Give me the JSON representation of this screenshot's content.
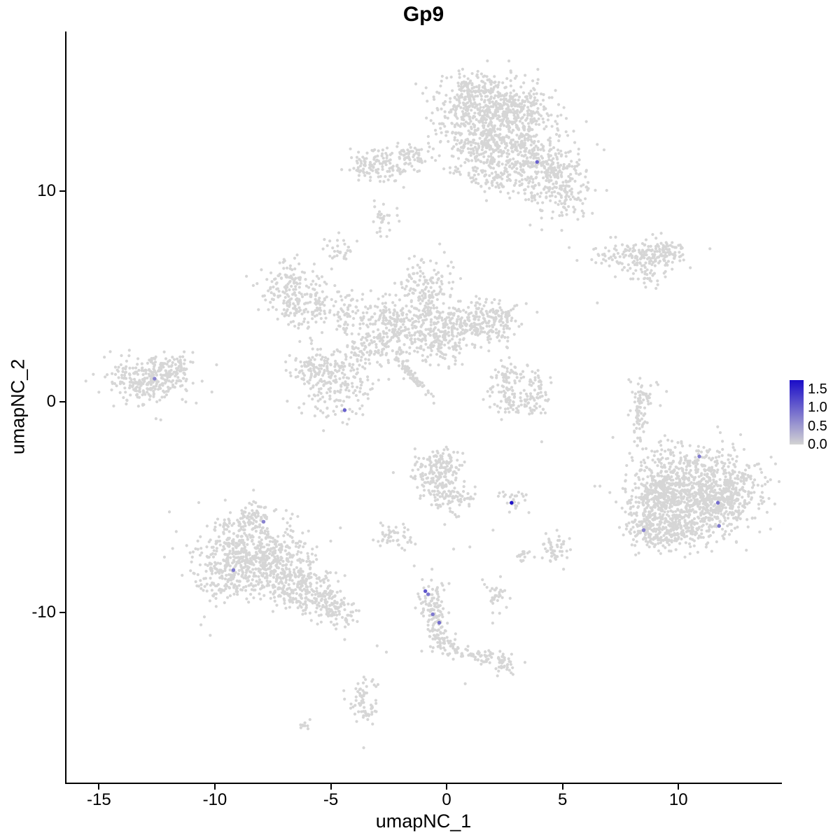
{
  "title": "Gp9",
  "axes": {
    "x_label": "umapNC_1",
    "y_label": "umapNC_2",
    "x_ticks": [
      -15,
      -10,
      -5,
      0,
      5,
      10
    ],
    "y_ticks": [
      -10,
      0,
      10
    ],
    "x_range": [
      -16.4,
      14.4
    ],
    "y_range": [
      -18.1,
      17.6
    ]
  },
  "legend": {
    "tick_labels": [
      "1.5",
      "1.0",
      "0.5",
      "0.0"
    ],
    "tick_values": [
      1.5,
      1.0,
      0.5,
      0.0
    ],
    "domain": [
      0,
      1.75
    ],
    "min_color": "#d3d3d3",
    "max_color": "#1a0cc8"
  },
  "chart_data": {
    "type": "scatter",
    "title": "Gp9",
    "xlabel": "umapNC_1",
    "ylabel": "umapNC_2",
    "grid": false,
    "point_color_zero": "#d6d6d6",
    "point_radius": 2.1,
    "highlight_radius": 2.7,
    "seed": 421,
    "clusters": [
      {
        "cx": 1.7,
        "cy": 13.9,
        "sx": 1.05,
        "sy": 0.85,
        "n": 430
      },
      {
        "cx": 2.7,
        "cy": 12.3,
        "sx": 1.15,
        "sy": 0.85,
        "n": 300
      },
      {
        "cx": 4.1,
        "cy": 11.3,
        "sx": 0.95,
        "sy": 0.75,
        "n": 230
      },
      {
        "cx": 4.9,
        "cy": 9.9,
        "sx": 0.7,
        "sy": 0.65,
        "n": 150
      },
      {
        "cx": 1.1,
        "cy": 12.0,
        "sx": 0.55,
        "sy": 0.7,
        "n": 110
      },
      {
        "cx": 2.1,
        "cy": 10.7,
        "sx": 0.4,
        "sy": 0.5,
        "n": 55
      },
      {
        "cx": 3.2,
        "cy": 14.0,
        "sx": 0.8,
        "sy": 0.55,
        "n": 130
      },
      {
        "cx": 0.9,
        "cy": 14.8,
        "sx": 0.4,
        "sy": 0.4,
        "n": 50
      },
      {
        "cx": -2.5,
        "cy": 11.3,
        "sx": 0.85,
        "sy": 0.45,
        "n": 120
      },
      {
        "cx": -1.3,
        "cy": 11.7,
        "sx": 0.45,
        "sy": 0.3,
        "n": 40
      },
      {
        "cx": -3.5,
        "cy": 11.0,
        "sx": 0.3,
        "sy": 0.25,
        "n": 25
      },
      {
        "cx": -2.9,
        "cy": 8.7,
        "sx": 0.3,
        "sy": 0.35,
        "n": 28
      },
      {
        "cx": -4.6,
        "cy": 7.3,
        "sx": 0.35,
        "sy": 0.3,
        "n": 30
      },
      {
        "cx": 8.0,
        "cy": 6.9,
        "sx": 1.0,
        "sy": 0.4,
        "n": 130
      },
      {
        "cx": 9.4,
        "cy": 7.1,
        "sx": 0.6,
        "sy": 0.4,
        "n": 85
      },
      {
        "cx": 8.6,
        "cy": 6.0,
        "sx": 0.35,
        "sy": 0.25,
        "n": 25
      },
      {
        "cx": -6.7,
        "cy": 5.3,
        "sx": 0.75,
        "sy": 0.75,
        "n": 180
      },
      {
        "cx": -5.9,
        "cy": 4.3,
        "sx": 0.45,
        "sy": 0.4,
        "n": 55
      },
      {
        "cx": -0.9,
        "cy": 5.3,
        "sx": 0.55,
        "sy": 0.75,
        "n": 150
      },
      {
        "cx": 0.7,
        "cy": 3.7,
        "sx": 1.1,
        "sy": 0.6,
        "n": 260
      },
      {
        "cx": 2.1,
        "cy": 3.9,
        "sx": 0.55,
        "sy": 0.45,
        "n": 90
      },
      {
        "cx": -1.6,
        "cy": 3.4,
        "sx": 0.8,
        "sy": 0.5,
        "n": 140
      },
      {
        "cx": -3.2,
        "cy": 2.6,
        "sx": 0.75,
        "sy": 0.55,
        "n": 130
      },
      {
        "cx": -2.5,
        "cy": 4.2,
        "sx": 0.5,
        "sy": 0.4,
        "n": 70
      },
      {
        "cx": -0.4,
        "cy": 2.5,
        "sx": 0.5,
        "sy": 0.4,
        "n": 70
      },
      {
        "cx": -4.3,
        "cy": 4.3,
        "sx": 0.4,
        "sy": 0.5,
        "n": 60
      },
      {
        "cx": -4.9,
        "cy": 0.9,
        "sx": 0.8,
        "sy": 0.8,
        "n": 210
      },
      {
        "cx": -5.8,
        "cy": 1.7,
        "sx": 0.45,
        "sy": 0.4,
        "n": 60
      },
      {
        "cx": -12.9,
        "cy": 1.0,
        "sx": 0.85,
        "sy": 0.55,
        "n": 270
      },
      {
        "cx": -11.8,
        "cy": 1.5,
        "sx": 0.45,
        "sy": 0.35,
        "n": 60
      },
      {
        "cx": -1.5,
        "cy": 1.25,
        "sx": 0.65,
        "sy": 0.09,
        "n": 70,
        "rot": -50
      },
      {
        "cx": 2.5,
        "cy": 0.7,
        "sx": 0.3,
        "sy": 0.55,
        "n": 60
      },
      {
        "cx": 3.1,
        "cy": -0.1,
        "sx": 0.5,
        "sy": 0.25,
        "n": 55
      },
      {
        "cx": 3.9,
        "cy": 0.5,
        "sx": 0.25,
        "sy": 0.55,
        "n": 50
      },
      {
        "cx": 3.0,
        "cy": 1.4,
        "sx": 0.35,
        "sy": 0.2,
        "n": 25
      },
      {
        "cx": 8.25,
        "cy": -0.5,
        "sx": 0.18,
        "sy": 0.85,
        "n": 60
      },
      {
        "cx": 8.6,
        "cy": 0.4,
        "sx": 0.25,
        "sy": 0.3,
        "n": 25
      },
      {
        "cx": 10.6,
        "cy": -3.6,
        "sx": 1.4,
        "sy": 0.9,
        "n": 500
      },
      {
        "cx": 11.3,
        "cy": -5.0,
        "sx": 1.2,
        "sy": 0.8,
        "n": 400
      },
      {
        "cx": 9.4,
        "cy": -5.2,
        "sx": 0.8,
        "sy": 0.7,
        "n": 250
      },
      {
        "cx": 12.4,
        "cy": -4.3,
        "sx": 0.55,
        "sy": 0.6,
        "n": 110
      },
      {
        "cx": 8.7,
        "cy": -6.1,
        "sx": 0.5,
        "sy": 0.5,
        "n": 100
      },
      {
        "cx": 10.0,
        "cy": -6.3,
        "sx": 0.7,
        "sy": 0.4,
        "n": 110
      },
      {
        "cx": 9.0,
        "cy": -4.0,
        "sx": 0.4,
        "sy": 0.5,
        "n": 70
      },
      {
        "cx": -0.5,
        "cy": -3.5,
        "sx": 0.5,
        "sy": 0.6,
        "n": 130
      },
      {
        "cx": 0.3,
        "cy": -4.4,
        "sx": 0.45,
        "sy": 0.5,
        "n": 90
      },
      {
        "cx": -0.1,
        "cy": -2.8,
        "sx": 0.4,
        "sy": 0.3,
        "n": 45
      },
      {
        "cx": 2.8,
        "cy": -4.75,
        "sx": 0.3,
        "sy": 0.22,
        "n": 28
      },
      {
        "cx": -8.6,
        "cy": -6.9,
        "sx": 1.1,
        "sy": 0.8,
        "n": 340
      },
      {
        "cx": -7.4,
        "cy": -7.9,
        "sx": 1.0,
        "sy": 0.8,
        "n": 300
      },
      {
        "cx": -9.6,
        "cy": -8.3,
        "sx": 0.7,
        "sy": 0.6,
        "n": 150
      },
      {
        "cx": -6.3,
        "cy": -8.9,
        "sx": 0.7,
        "sy": 0.5,
        "n": 150
      },
      {
        "cx": -5.3,
        "cy": -9.5,
        "sx": 0.5,
        "sy": 0.35,
        "n": 80
      },
      {
        "cx": -4.6,
        "cy": -10.1,
        "sx": 0.4,
        "sy": 0.3,
        "n": 55
      },
      {
        "cx": -8.4,
        "cy": -5.6,
        "sx": 0.6,
        "sy": 0.4,
        "n": 80
      },
      {
        "cx": -2.3,
        "cy": -6.4,
        "sx": 0.4,
        "sy": 0.3,
        "n": 45
      },
      {
        "cx": 4.7,
        "cy": -7.0,
        "sx": 0.3,
        "sy": 0.4,
        "n": 45
      },
      {
        "cx": 3.3,
        "cy": -7.3,
        "sx": 0.18,
        "sy": 0.22,
        "n": 15
      },
      {
        "cx": -0.65,
        "cy": -9.5,
        "sx": 0.28,
        "sy": 0.5,
        "n": 60
      },
      {
        "cx": -0.4,
        "cy": -10.6,
        "sx": 0.22,
        "sy": 0.5,
        "n": 55
      },
      {
        "cx": -0.1,
        "cy": -11.5,
        "sx": 0.3,
        "sy": 0.3,
        "n": 40
      },
      {
        "cx": 2.1,
        "cy": -9.2,
        "sx": 0.28,
        "sy": 0.38,
        "n": 32
      },
      {
        "cx": 0.7,
        "cy": -11.9,
        "sx": 0.35,
        "sy": 0.15,
        "n": 25,
        "rot": -15
      },
      {
        "cx": 1.5,
        "cy": -12.1,
        "sx": 0.4,
        "sy": 0.15,
        "n": 30,
        "rot": -10
      },
      {
        "cx": 2.3,
        "cy": -12.4,
        "sx": 0.35,
        "sy": 0.28,
        "n": 45
      },
      {
        "cx": -3.6,
        "cy": -13.9,
        "sx": 0.28,
        "sy": 0.6,
        "n": 55
      },
      {
        "cx": -3.4,
        "cy": -14.8,
        "sx": 0.2,
        "sy": 0.2,
        "n": 15
      },
      {
        "cx": -6.1,
        "cy": -15.4,
        "sx": 0.18,
        "sy": 0.12,
        "n": 9
      }
    ],
    "stray_points": [
      [
        2.7,
        2.1
      ],
      [
        4.1,
        -1.9
      ],
      [
        1.0,
        -6.9
      ],
      [
        2.0,
        -6.1
      ],
      [
        -1.4,
        -7.8
      ],
      [
        0.3,
        -7.0
      ],
      [
        5.3,
        -6.5
      ],
      [
        -10.6,
        -10.6
      ],
      [
        -10.2,
        -11.1
      ],
      [
        3.6,
        8.4
      ],
      [
        -0.3,
        7.5
      ],
      [
        6.5,
        4.7
      ],
      [
        -3.0,
        -11.6
      ],
      [
        -2.6,
        -11.9
      ],
      [
        0.8,
        -13.4
      ],
      [
        -4.4,
        -11.3
      ]
    ],
    "expressing_points": [
      {
        "x": 3.9,
        "y": 11.4,
        "value": 1.0
      },
      {
        "x": -12.6,
        "y": 1.1,
        "value": 0.7
      },
      {
        "x": -4.4,
        "y": -0.4,
        "value": 1.0
      },
      {
        "x": 10.9,
        "y": -2.6,
        "value": 0.8
      },
      {
        "x": 11.7,
        "y": -4.8,
        "value": 0.9
      },
      {
        "x": 11.75,
        "y": -5.9,
        "value": 0.8
      },
      {
        "x": 8.5,
        "y": -6.1,
        "value": 0.7
      },
      {
        "x": 2.8,
        "y": -4.8,
        "value": 1.7
      },
      {
        "x": -7.9,
        "y": -5.7,
        "value": 0.7
      },
      {
        "x": -9.2,
        "y": -8.0,
        "value": 0.8
      },
      {
        "x": -0.92,
        "y": -9.0,
        "value": 1.1
      },
      {
        "x": -0.8,
        "y": -9.15,
        "value": 0.8
      },
      {
        "x": -0.6,
        "y": -10.1,
        "value": 0.8
      },
      {
        "x": -0.32,
        "y": -10.5,
        "value": 0.9
      }
    ]
  }
}
